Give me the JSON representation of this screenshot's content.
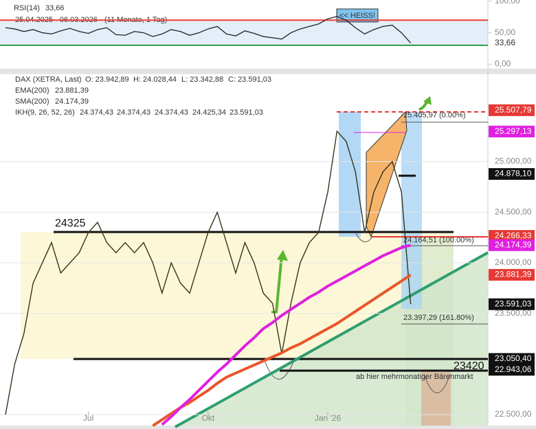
{
  "chart_data": [
    {
      "type": "line",
      "title": "RSI(14)",
      "title_value": "33,66",
      "period": "25.04.2025 - 06.03.2026",
      "period_note": "(11 Monate, 1 Tag)",
      "annotation": "<< HEISS!",
      "series": [
        {
          "name": "RSI(14)",
          "color": "#222222",
          "values": [
            58,
            56,
            52,
            55,
            50,
            48,
            53,
            57,
            52,
            49,
            55,
            58,
            47,
            46,
            52,
            50,
            44,
            48,
            55,
            52,
            46,
            50,
            56,
            60,
            48,
            45,
            53,
            49,
            44,
            42,
            40,
            50,
            56,
            60,
            64,
            72,
            76,
            70,
            58,
            48,
            55,
            60,
            62,
            50,
            33.66
          ]
        }
      ],
      "levels": [
        {
          "value": 70,
          "color": "#e53935"
        },
        {
          "value": 30,
          "color": "#2ea043"
        }
      ],
      "last_tag": {
        "value": 33.66,
        "label": "33,66"
      },
      "ylim": [
        -7,
        102
      ],
      "yticks": [
        {
          "value": 0,
          "label": "0,00"
        },
        {
          "value": 50,
          "label": "50,00"
        },
        {
          "value": 100,
          "label": "100,00"
        }
      ]
    },
    {
      "type": "line",
      "title": "DAX (XETRA, Last)",
      "ohlc": [
        "O: 23.942,89",
        "H: 24.028,44",
        "L: 23.342,88",
        "C: 23.591,03"
      ],
      "ikh": {
        "name": "IKH(9, 26, 52, 26)",
        "values": [
          "24.374,43",
          "24.374,43",
          "24.374,43",
          "24.425,34",
          "23.591,03"
        ]
      },
      "categories": [
        null,
        null,
        null,
        null,
        null,
        null,
        null,
        null,
        null,
        "Jul",
        null,
        null,
        null,
        null,
        null,
        null,
        null,
        null,
        null,
        null,
        null,
        null,
        "Okt",
        null,
        null,
        null,
        null,
        null,
        null,
        null,
        null,
        null,
        null,
        null,
        null,
        "Jan '26",
        null,
        null,
        null,
        null,
        null,
        null,
        null,
        null,
        null
      ],
      "series": [
        {
          "name": "DAX (XETRA, Last)",
          "color": "#33331a",
          "values": [
            22500,
            23000,
            23300,
            23800,
            24000,
            24200,
            23900,
            24000,
            24100,
            24300,
            24400,
            24200,
            24100,
            24200,
            24100,
            24200,
            24000,
            23700,
            24000,
            23800,
            23700,
            24000,
            24300,
            24500,
            24200,
            23900,
            24200,
            24000,
            23700,
            23600,
            23100,
            23600,
            24000,
            24200,
            24300,
            24700,
            25300,
            25200,
            24900,
            24300,
            24700,
            24900,
            25000,
            24700,
            23591.03
          ]
        },
        {
          "name": "EMA(200)",
          "last_label": "23.881,39",
          "color": "#e8562a",
          "values": [
            null,
            null,
            null,
            null,
            null,
            null,
            null,
            null,
            null,
            null,
            null,
            null,
            null,
            null,
            null,
            null,
            22390,
            22450,
            22510,
            22570,
            22620,
            22680,
            22740,
            22810,
            22870,
            22910,
            22950,
            22990,
            23030,
            23070,
            23110,
            23160,
            23200,
            23250,
            23300,
            23350,
            23400,
            23460,
            23520,
            23580,
            23640,
            23700,
            23760,
            23820,
            23881.39
          ]
        },
        {
          "name": "SMA(200)",
          "last_label": "24.174,39",
          "color": "#e020e0",
          "values": [
            null,
            null,
            null,
            null,
            null,
            null,
            null,
            null,
            null,
            null,
            null,
            null,
            null,
            null,
            null,
            null,
            null,
            22400,
            22480,
            22570,
            22650,
            22740,
            22830,
            22920,
            23000,
            23090,
            23180,
            23260,
            23350,
            23410,
            23480,
            23540,
            23600,
            23660,
            23710,
            23770,
            23820,
            23870,
            23920,
            23970,
            24020,
            24070,
            24110,
            24150,
            24174.39
          ]
        }
      ],
      "annotations": [
        "24325",
        "23420",
        "ab hier mehrmonatiger Bärenmarkt",
        "25.405,97 (0.00%)",
        "24.164,51 (100.00%)",
        "23.397,29 (161.80%)"
      ],
      "price_tags": [
        {
          "value": 25507.79,
          "label": "25.507,79",
          "color": "#e53935"
        },
        {
          "value": 25297.13,
          "label": "25.297,13",
          "color": "#e020e0"
        },
        {
          "value": 24878.1,
          "label": "24.878,10",
          "color": "#111111"
        },
        {
          "value": 24266.33,
          "label": "24.266,33",
          "color": "#e53935"
        },
        {
          "value": 24174.39,
          "label": "24.174,39",
          "color": "#e020e0"
        },
        {
          "value": 23881.39,
          "label": "23.881,39",
          "color": "#e53935"
        },
        {
          "value": 23591.03,
          "label": "23.591,03",
          "color": "#111111"
        },
        {
          "value": 23050.4,
          "label": "23.050,40",
          "color": "#111111"
        },
        {
          "value": 22943.06,
          "label": "22.943,06",
          "color": "#111111"
        }
      ],
      "ylim": [
        22392,
        25851
      ],
      "yticks": [
        {
          "value": 22500,
          "label": "22.500,00"
        },
        {
          "value": 23500,
          "label": "23.500,00"
        },
        {
          "value": 24000,
          "label": "24.000,00"
        },
        {
          "value": 24500,
          "label": "24.500,00"
        },
        {
          "value": 25000,
          "label": "25.000,00"
        }
      ],
      "grid": true
    }
  ]
}
